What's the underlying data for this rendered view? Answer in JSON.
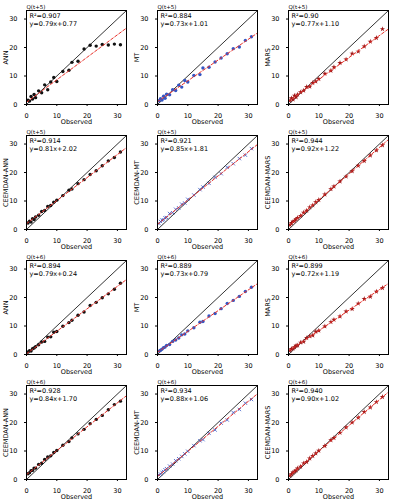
{
  "chart_data": [
    {
      "type": "scatter",
      "title": "Q(t+5)",
      "x_label": "Observed",
      "y_label": "ANN",
      "xlim": [
        0,
        33
      ],
      "ylim": [
        0,
        33
      ],
      "xticks": [
        0,
        10,
        20,
        30
      ],
      "yticks": [
        0,
        10,
        20,
        30
      ],
      "color": "#111111",
      "marker": "circle",
      "annotations": [
        "R²=0.907",
        "y=0.79x+0.77"
      ],
      "fit": {
        "slope": 0.79,
        "intercept": 0.77
      },
      "x": [
        0.5,
        1,
        1.5,
        2,
        2.5,
        3,
        4,
        5,
        6,
        7,
        8,
        9,
        10,
        12,
        14,
        15,
        17,
        19,
        21,
        23,
        25,
        27,
        29,
        31
      ],
      "y": [
        1.5,
        1.2,
        2.8,
        1.9,
        3.5,
        2.4,
        4.8,
        4.1,
        6.9,
        5.2,
        7.9,
        9.5,
        8.1,
        11.6,
        12.0,
        14.8,
        15.2,
        19.5,
        20.8,
        20.5,
        21.1,
        20.9,
        21.2,
        21.0
      ]
    },
    {
      "type": "scatter",
      "title": "Q(t+5)",
      "x_label": "Observed",
      "y_label": "MT",
      "xlim": [
        0,
        33
      ],
      "ylim": [
        0,
        33
      ],
      "xticks": [
        0,
        10,
        20,
        30
      ],
      "yticks": [
        0,
        10,
        20,
        30
      ],
      "color": "#3355c4",
      "marker": "circle",
      "annotations": [
        "R²=0.884",
        "y=0.73x+1.01"
      ],
      "fit": {
        "slope": 0.73,
        "intercept": 1.01
      },
      "x": [
        0.5,
        1,
        1.5,
        2,
        2.5,
        3,
        4,
        5,
        6,
        7,
        8,
        9,
        10,
        12,
        14,
        15,
        17,
        19,
        21,
        23,
        25,
        27,
        29,
        31
      ],
      "y": [
        1.3,
        2.0,
        1.6,
        2.9,
        2.2,
        3.6,
        3.4,
        5.2,
        4.9,
        6.8,
        6.1,
        8.4,
        7.9,
        10.2,
        10.5,
        12.8,
        13.1,
        14.9,
        16.3,
        17.8,
        19.6,
        20.2,
        22.5,
        23.8
      ]
    },
    {
      "type": "scatter",
      "title": "Q(t+5)",
      "x_label": "Observed",
      "y_label": "MARS",
      "xlim": [
        0,
        33
      ],
      "ylim": [
        0,
        33
      ],
      "xticks": [
        0,
        10,
        20,
        30
      ],
      "yticks": [
        0,
        10,
        20,
        30
      ],
      "color": "#a01818",
      "marker": "star",
      "annotations": [
        "R²=0.90",
        "y=0.77x+1.10"
      ],
      "fit": {
        "slope": 0.77,
        "intercept": 1.1
      },
      "x": [
        0.5,
        1,
        1.5,
        2,
        2.5,
        3,
        4,
        5,
        6,
        7,
        8,
        9,
        10,
        12,
        14,
        15,
        17,
        19,
        21,
        23,
        25,
        27,
        29,
        31
      ],
      "y": [
        1.4,
        2.2,
        1.8,
        3.1,
        2.6,
        3.5,
        4.3,
        4.9,
        6.2,
        6.3,
        7.6,
        8.1,
        9.0,
        10.8,
        11.9,
        13.1,
        14.6,
        15.8,
        17.9,
        18.6,
        20.4,
        22.1,
        23.4,
        26.5
      ]
    },
    {
      "type": "scatter",
      "title": "Q(t+5)",
      "x_label": "Observed",
      "y_label": "CEEMDAN-ANN",
      "xlim": [
        0,
        33
      ],
      "ylim": [
        0,
        33
      ],
      "xticks": [
        0,
        10,
        20,
        30
      ],
      "yticks": [
        0,
        10,
        20,
        30
      ],
      "color": "#111111",
      "marker": "circle",
      "annotations": [
        "R²=0.914",
        "y=0.81x+2.02"
      ],
      "fit": {
        "slope": 0.81,
        "intercept": 2.02
      },
      "x": [
        0.5,
        1,
        1.5,
        2,
        2.5,
        3,
        4,
        5,
        6,
        7,
        8,
        9,
        10,
        12,
        14,
        15,
        17,
        19,
        21,
        23,
        25,
        27,
        29,
        31
      ],
      "y": [
        2.3,
        2.9,
        2.6,
        3.8,
        3.5,
        4.4,
        5.0,
        6.3,
        6.7,
        8.1,
        8.4,
        9.6,
        10.3,
        11.9,
        13.8,
        14.2,
        16.1,
        17.5,
        19.3,
        20.6,
        22.4,
        24.1,
        25.3,
        27.2
      ]
    },
    {
      "type": "scatter",
      "title": "Q(t+5)",
      "x_label": "Observed",
      "y_label": "CEEMDAN-MT",
      "xlim": [
        0,
        33
      ],
      "ylim": [
        0,
        33
      ],
      "xticks": [
        0,
        10,
        20,
        30
      ],
      "yticks": [
        0,
        10,
        20,
        30
      ],
      "color": "#3355c4",
      "marker": "times",
      "annotations": [
        "R²=0.921",
        "y=0.85x+1.81"
      ],
      "fit": {
        "slope": 0.85,
        "intercept": 1.81
      },
      "x": [
        0.5,
        1,
        1.5,
        2,
        2.5,
        3,
        4,
        5,
        6,
        7,
        8,
        9,
        10,
        12,
        14,
        15,
        17,
        19,
        21,
        23,
        25,
        27,
        29,
        31
      ],
      "y": [
        2.1,
        2.8,
        3.3,
        3.4,
        4.1,
        4.2,
        5.6,
        5.9,
        7.1,
        7.6,
        8.9,
        9.3,
        10.6,
        12.1,
        14.0,
        14.9,
        16.2,
        18.3,
        19.6,
        21.8,
        23.1,
        24.9,
        26.1,
        28.4
      ]
    },
    {
      "type": "scatter",
      "title": "Q(t+5)",
      "x_label": "Observed",
      "y_label": "CEEMDAN-MARS",
      "xlim": [
        0,
        33
      ],
      "ylim": [
        0,
        33
      ],
      "xticks": [
        0,
        10,
        20,
        30
      ],
      "yticks": [
        0,
        10,
        20,
        30
      ],
      "color": "#a01818",
      "marker": "star",
      "annotations": [
        "R²=0.944",
        "y=0.92x+1.22"
      ],
      "fit": {
        "slope": 0.92,
        "intercept": 1.22
      },
      "x": [
        0.5,
        1,
        1.5,
        2,
        2.5,
        3,
        4,
        5,
        6,
        7,
        8,
        9,
        10,
        12,
        14,
        15,
        17,
        19,
        21,
        23,
        25,
        27,
        29,
        31
      ],
      "y": [
        1.6,
        2.3,
        2.8,
        3.0,
        3.6,
        4.1,
        4.8,
        5.9,
        6.6,
        7.8,
        8.5,
        9.6,
        10.4,
        12.3,
        14.2,
        15.1,
        16.9,
        18.6,
        20.5,
        22.4,
        24.1,
        26.0,
        27.8,
        29.6
      ]
    },
    {
      "type": "scatter",
      "title": "Q(t+6)",
      "x_label": "Observed",
      "y_label": "ANN",
      "xlim": [
        0,
        33
      ],
      "ylim": [
        0,
        33
      ],
      "xticks": [
        0,
        10,
        20,
        30
      ],
      "yticks": [
        0,
        10,
        20,
        30
      ],
      "color": "#111111",
      "marker": "circle",
      "annotations": [
        "R²=0.894",
        "y=0.79x+0.24"
      ],
      "fit": {
        "slope": 0.79,
        "intercept": 0.24
      },
      "x": [
        0.5,
        1,
        1.5,
        2,
        2.5,
        3,
        4,
        5,
        6,
        7,
        8,
        9,
        10,
        12,
        14,
        15,
        17,
        19,
        21,
        23,
        25,
        27,
        29,
        31
      ],
      "y": [
        0.9,
        1.3,
        1.2,
        2.0,
        2.3,
        2.7,
        3.4,
        4.4,
        4.6,
        6.1,
        6.2,
        7.8,
        8.1,
        9.9,
        11.2,
        12.0,
        13.8,
        14.9,
        17.2,
        18.3,
        19.9,
        21.3,
        22.9,
        25.0
      ]
    },
    {
      "type": "scatter",
      "title": "Q(t+6)",
      "x_label": "Observed",
      "y_label": "MT",
      "xlim": [
        0,
        33
      ],
      "ylim": [
        0,
        33
      ],
      "xticks": [
        0,
        10,
        20,
        30
      ],
      "yticks": [
        0,
        10,
        20,
        30
      ],
      "color": "#3355c4",
      "marker": "circle",
      "annotations": [
        "R²=0.889",
        "y=0.73x+0.79"
      ],
      "fit": {
        "slope": 0.73,
        "intercept": 0.79
      },
      "x": [
        0.5,
        1,
        1.5,
        2,
        2.5,
        3,
        4,
        5,
        6,
        7,
        8,
        9,
        10,
        12,
        14,
        15,
        17,
        19,
        21,
        23,
        25,
        27,
        29,
        31
      ],
      "y": [
        1.2,
        1.5,
        1.9,
        2.4,
        2.6,
        3.2,
        3.5,
        4.6,
        5.1,
        5.8,
        6.9,
        7.2,
        8.3,
        9.4,
        11.3,
        11.6,
        13.5,
        14.4,
        16.1,
        17.9,
        19.0,
        20.4,
        22.1,
        23.6
      ]
    },
    {
      "type": "scatter",
      "title": "Q(t+6)",
      "x_label": "Observed",
      "y_label": "MARS",
      "xlim": [
        0,
        33
      ],
      "ylim": [
        0,
        33
      ],
      "xticks": [
        0,
        10,
        20,
        30
      ],
      "yticks": [
        0,
        10,
        20,
        30
      ],
      "color": "#a01818",
      "marker": "star",
      "annotations": [
        "R²=0.899",
        "y=0.72x+1.19"
      ],
      "fit": {
        "slope": 0.72,
        "intercept": 1.19
      },
      "x": [
        0.5,
        1,
        1.5,
        2,
        2.5,
        3,
        4,
        5,
        6,
        7,
        8,
        9,
        10,
        12,
        14,
        15,
        17,
        19,
        21,
        23,
        25,
        27,
        29,
        31
      ],
      "y": [
        1.4,
        2.0,
        2.1,
        2.6,
        3.1,
        3.2,
        4.2,
        4.5,
        5.8,
        6.4,
        6.7,
        8.0,
        8.4,
        9.9,
        11.4,
        12.2,
        13.4,
        15.1,
        16.0,
        17.9,
        19.5,
        20.3,
        22.1,
        23.4
      ]
    },
    {
      "type": "scatter",
      "title": "Q(t+6)",
      "x_label": "Observed",
      "y_label": "CEEMDAN-ANN",
      "xlim": [
        0,
        33
      ],
      "ylim": [
        0,
        33
      ],
      "xticks": [
        0,
        10,
        20,
        30
      ],
      "yticks": [
        0,
        10,
        20,
        30
      ],
      "color": "#111111",
      "marker": "circle",
      "annotations": [
        "R²=0.928",
        "y=0.84x+1.70"
      ],
      "fit": {
        "slope": 0.84,
        "intercept": 1.7
      },
      "x": [
        0.5,
        1,
        1.5,
        2,
        2.5,
        3,
        4,
        5,
        6,
        7,
        8,
        9,
        10,
        12,
        14,
        15,
        17,
        19,
        21,
        23,
        25,
        27,
        29,
        31
      ],
      "y": [
        2.0,
        2.4,
        3.1,
        3.2,
        4.0,
        4.0,
        5.3,
        5.7,
        7.0,
        7.9,
        8.3,
        9.5,
        10.2,
        12.0,
        13.3,
        14.6,
        16.0,
        17.6,
        19.6,
        21.1,
        22.5,
        24.5,
        26.3,
        27.5
      ]
    },
    {
      "type": "scatter",
      "title": "Q(t+6)",
      "x_label": "Observed",
      "y_label": "CEEMDAN-MT",
      "xlim": [
        0,
        33
      ],
      "ylim": [
        0,
        33
      ],
      "xticks": [
        0,
        10,
        20,
        30
      ],
      "yticks": [
        0,
        10,
        20,
        30
      ],
      "color": "#3355c4",
      "marker": "times",
      "annotations": [
        "R²=0.934",
        "y=0.88x+1.06"
      ],
      "fit": {
        "slope": 0.88,
        "intercept": 1.06
      },
      "x": [
        0.5,
        1,
        1.5,
        2,
        2.5,
        3,
        4,
        5,
        6,
        7,
        8,
        9,
        10,
        12,
        14,
        15,
        17,
        19,
        21,
        23,
        25,
        27,
        29,
        31
      ],
      "y": [
        1.6,
        1.9,
        2.5,
        2.8,
        3.4,
        3.8,
        4.7,
        5.4,
        6.6,
        7.3,
        8.1,
        9.0,
        9.9,
        11.9,
        13.6,
        14.0,
        16.2,
        17.4,
        19.8,
        20.9,
        23.5,
        24.6,
        26.8,
        28.1
      ]
    },
    {
      "type": "scatter",
      "title": "Q(t+6)",
      "x_label": "Observed",
      "y_label": "CEEMDAN-MARS",
      "xlim": [
        0,
        33
      ],
      "ylim": [
        0,
        33
      ],
      "xticks": [
        0,
        10,
        20,
        30
      ],
      "yticks": [
        0,
        10,
        20,
        30
      ],
      "color": "#a01818",
      "marker": "star",
      "annotations": [
        "R²=0.940",
        "y=0.90x+1.02"
      ],
      "fit": {
        "slope": 0.9,
        "intercept": 1.02
      },
      "x": [
        0.5,
        1,
        1.5,
        2,
        2.5,
        3,
        4,
        5,
        6,
        7,
        8,
        9,
        10,
        12,
        14,
        15,
        17,
        19,
        21,
        23,
        25,
        27,
        29,
        31
      ],
      "y": [
        1.4,
        1.9,
        2.5,
        2.8,
        3.2,
        3.9,
        4.5,
        5.7,
        6.2,
        7.4,
        8.3,
        9.2,
        10.1,
        11.8,
        13.8,
        14.6,
        16.4,
        18.3,
        20.0,
        21.7,
        23.7,
        25.3,
        27.2,
        29.0
      ]
    }
  ]
}
